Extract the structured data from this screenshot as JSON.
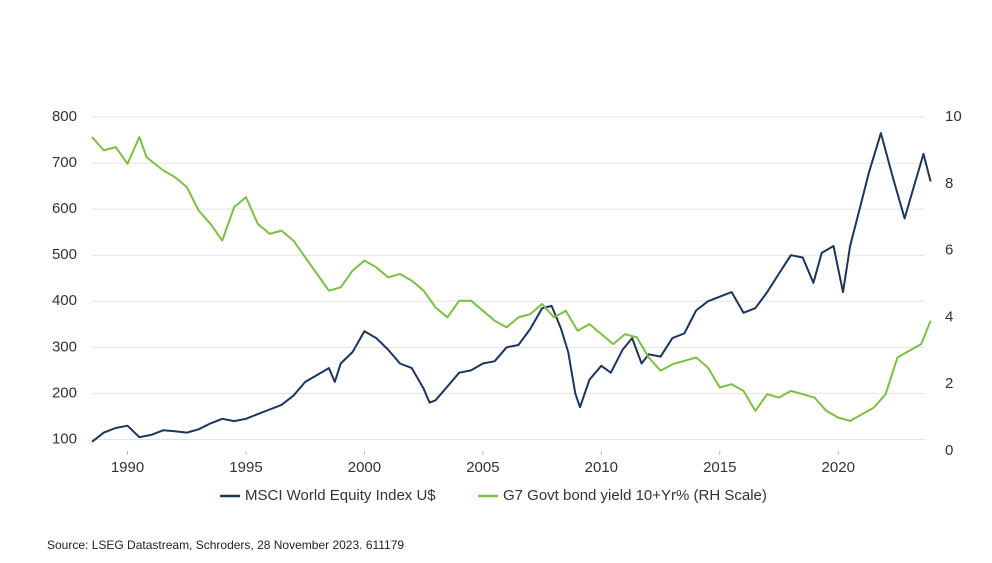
{
  "chart_data": {
    "type": "line",
    "source": "Source: LSEG Datastream, Schroders, 28 November 2023. 611179",
    "xlim": [
      1988.5,
      2024
    ],
    "xticks": [
      1990,
      1995,
      2000,
      2005,
      2010,
      2015,
      2020
    ],
    "ylim": [
      75,
      800
    ],
    "yticks": [
      100,
      200,
      300,
      400,
      500,
      600,
      700,
      800
    ],
    "y2lim": [
      0,
      10
    ],
    "y2ticks": [
      0,
      2,
      4,
      6,
      8,
      10
    ],
    "grid": true,
    "series": [
      {
        "name": "MSCI World Equity Index U$",
        "color": "#1b365d",
        "x": [
          1988.5,
          1989.0,
          1989.5,
          1990.0,
          1990.5,
          1991.0,
          1991.5,
          1992.0,
          1992.5,
          1993.0,
          1993.5,
          1994.0,
          1994.5,
          1995.0,
          1995.5,
          1996.0,
          1996.5,
          1997.0,
          1997.5,
          1998.0,
          1998.5,
          1998.75,
          1999.0,
          1999.5,
          2000.0,
          2000.5,
          2001.0,
          2001.5,
          2002.0,
          2002.5,
          2002.75,
          2003.0,
          2003.5,
          2004.0,
          2004.5,
          2005.0,
          2005.5,
          2006.0,
          2006.5,
          2007.0,
          2007.5,
          2007.9,
          2008.3,
          2008.6,
          2008.9,
          2009.1,
          2009.5,
          2010.0,
          2010.4,
          2010.9,
          2011.3,
          2011.7,
          2012.0,
          2012.5,
          2013.0,
          2013.5,
          2014.0,
          2014.5,
          2015.0,
          2015.5,
          2016.0,
          2016.5,
          2017.0,
          2017.5,
          2018.0,
          2018.5,
          2018.95,
          2019.3,
          2019.8,
          2020.2,
          2020.5,
          2020.9,
          2021.3,
          2021.8,
          2022.3,
          2022.8,
          2023.2,
          2023.6,
          2023.9
        ],
        "values": [
          95,
          115,
          125,
          130,
          105,
          110,
          120,
          118,
          115,
          122,
          135,
          145,
          140,
          145,
          155,
          165,
          175,
          195,
          225,
          240,
          255,
          225,
          265,
          290,
          335,
          320,
          295,
          265,
          255,
          210,
          180,
          185,
          215,
          245,
          250,
          265,
          270,
          300,
          305,
          340,
          385,
          390,
          340,
          290,
          200,
          170,
          230,
          260,
          245,
          295,
          320,
          265,
          285,
          280,
          320,
          330,
          380,
          400,
          410,
          420,
          375,
          385,
          420,
          460,
          500,
          495,
          440,
          505,
          520,
          420,
          520,
          600,
          680,
          765,
          670,
          580,
          650,
          720,
          660
        ]
      },
      {
        "name": "G7 Govt bond yield 10+Yr% (RH Scale)",
        "color": "#7ac143",
        "axis": "y2",
        "x": [
          1988.5,
          1989.0,
          1989.5,
          1990.0,
          1990.5,
          1990.8,
          1991.5,
          1992.0,
          1992.5,
          1993.0,
          1993.5,
          1994.0,
          1994.5,
          1995.0,
          1995.5,
          1996.0,
          1996.5,
          1997.0,
          1997.5,
          1998.0,
          1998.5,
          1999.0,
          1999.5,
          2000.0,
          2000.5,
          2001.0,
          2001.5,
          2002.0,
          2002.5,
          2003.0,
          2003.5,
          2004.0,
          2004.5,
          2005.0,
          2005.5,
          2006.0,
          2006.5,
          2007.0,
          2007.5,
          2008.0,
          2008.5,
          2009.0,
          2009.5,
          2010.0,
          2010.5,
          2011.0,
          2011.5,
          2012.0,
          2012.5,
          2013.0,
          2013.5,
          2014.0,
          2014.5,
          2015.0,
          2015.5,
          2016.0,
          2016.5,
          2017.0,
          2017.5,
          2018.0,
          2018.5,
          2019.0,
          2019.5,
          2020.0,
          2020.5,
          2021.0,
          2021.5,
          2022.0,
          2022.5,
          2023.0,
          2023.5,
          2023.9
        ],
        "values": [
          9.4,
          9.0,
          9.1,
          8.6,
          9.4,
          8.8,
          8.4,
          8.2,
          7.9,
          7.2,
          6.8,
          6.3,
          7.3,
          7.6,
          6.8,
          6.5,
          6.6,
          6.3,
          5.8,
          5.3,
          4.8,
          4.9,
          5.4,
          5.7,
          5.5,
          5.2,
          5.3,
          5.1,
          4.8,
          4.3,
          4.0,
          4.5,
          4.5,
          4.2,
          3.9,
          3.7,
          4.0,
          4.1,
          4.4,
          4.0,
          4.2,
          3.6,
          3.8,
          3.5,
          3.2,
          3.5,
          3.4,
          2.8,
          2.4,
          2.6,
          2.7,
          2.8,
          2.5,
          1.9,
          2.0,
          1.8,
          1.2,
          1.7,
          1.6,
          1.8,
          1.7,
          1.6,
          1.2,
          1.0,
          0.9,
          1.1,
          1.3,
          1.7,
          2.8,
          3.0,
          3.2,
          3.9
        ]
      }
    ]
  }
}
